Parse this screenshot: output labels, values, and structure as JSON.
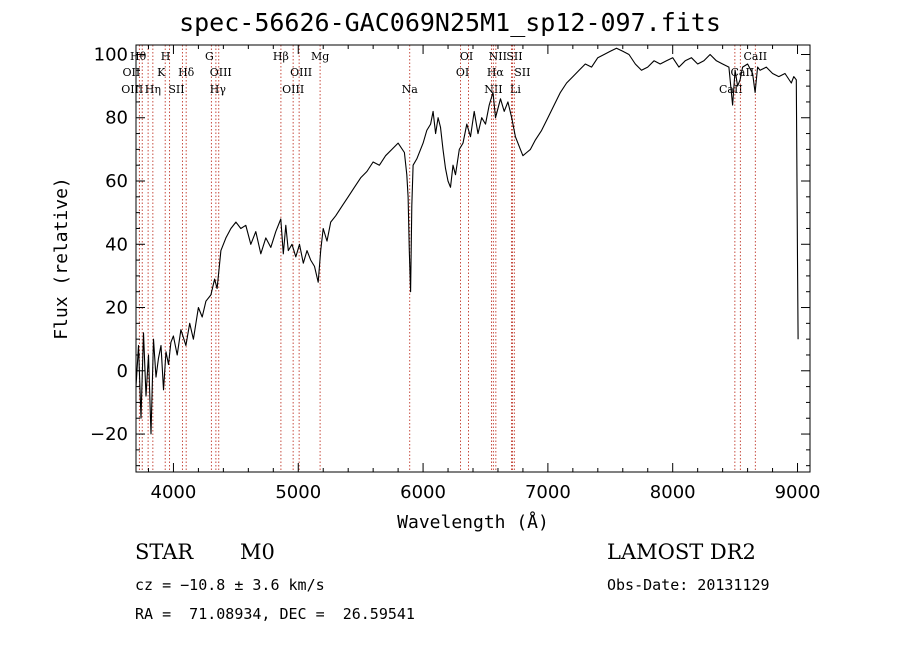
{
  "title": "spec-56626-GAC069N25M1_sp12-097.fits",
  "info": {
    "class": "STAR",
    "subclass": "M0",
    "survey": "LAMOST DR2",
    "cz": "cz = −10.8 ± 3.6 km/s",
    "obs_date": "Obs-Date: 20131129",
    "radec": "RA =  71.08934, DEC =  26.59541"
  },
  "chart_data": {
    "type": "line",
    "xlabel": "Wavelength (Å)",
    "ylabel": "Flux (relative)",
    "xlim": [
      3700,
      9100
    ],
    "ylim": [
      -32,
      103
    ],
    "xticks": [
      4000,
      5000,
      6000,
      7000,
      8000,
      9000
    ],
    "yticks": [
      -20,
      0,
      20,
      40,
      60,
      80,
      100
    ],
    "ytick_labels": [
      "−20",
      "0",
      "20",
      "40",
      "60",
      "80",
      "100"
    ],
    "grid": false,
    "series": [
      {
        "x": [
          3700,
          3720,
          3740,
          3760,
          3780,
          3800,
          3820,
          3840,
          3860,
          3880,
          3900,
          3920,
          3940,
          3960,
          3980,
          4000,
          4030,
          4060,
          4100,
          4130,
          4160,
          4200,
          4230,
          4260,
          4300,
          4330,
          4350,
          4380,
          4420,
          4460,
          4500,
          4540,
          4580,
          4620,
          4660,
          4700,
          4740,
          4780,
          4820,
          4860,
          4880,
          4900,
          4920,
          4950,
          4980,
          5010,
          5040,
          5070,
          5100,
          5130,
          5160,
          5180,
          5200,
          5230,
          5260,
          5300,
          5350,
          5400,
          5450,
          5500,
          5550,
          5600,
          5650,
          5700,
          5750,
          5800,
          5850,
          5870,
          5880,
          5890,
          5900,
          5910,
          5920,
          5950,
          6000,
          6030,
          6060,
          6080,
          6100,
          6120,
          6140,
          6160,
          6180,
          6200,
          6220,
          6240,
          6260,
          6290,
          6320,
          6350,
          6380,
          6410,
          6440,
          6470,
          6500,
          6530,
          6560,
          6580,
          6600,
          6620,
          6650,
          6680,
          6710,
          6740,
          6760,
          6780,
          6800,
          6830,
          6860,
          6900,
          6950,
          7000,
          7050,
          7100,
          7150,
          7200,
          7250,
          7300,
          7350,
          7400,
          7450,
          7500,
          7550,
          7600,
          7650,
          7700,
          7750,
          7800,
          7850,
          7900,
          7950,
          8000,
          8050,
          8100,
          8150,
          8200,
          8250,
          8300,
          8350,
          8400,
          8450,
          8480,
          8500,
          8520,
          8540,
          8560,
          8600,
          8640,
          8660,
          8680,
          8700,
          8750,
          8800,
          8850,
          8900,
          8950,
          8970,
          8990,
          9000,
          9005
        ],
        "y": [
          -5,
          8,
          -15,
          12,
          -8,
          5,
          -20,
          10,
          -2,
          4,
          8,
          -6,
          6,
          2,
          9,
          11,
          5,
          13,
          8,
          15,
          10,
          20,
          17,
          22,
          24,
          29,
          26,
          38,
          42,
          45,
          47,
          45,
          46,
          40,
          44,
          37,
          42,
          39,
          44,
          48,
          37,
          46,
          38,
          40,
          36,
          40,
          34,
          38,
          35,
          33,
          28,
          38,
          45,
          41,
          47,
          49,
          52,
          55,
          58,
          61,
          63,
          66,
          65,
          68,
          70,
          72,
          69,
          62,
          55,
          38,
          25,
          52,
          65,
          67,
          72,
          76,
          78,
          82,
          75,
          80,
          77,
          70,
          64,
          60,
          58,
          65,
          62,
          70,
          72,
          78,
          74,
          82,
          75,
          80,
          78,
          84,
          88,
          80,
          83,
          86,
          82,
          85,
          80,
          74,
          72,
          70,
          68,
          69,
          70,
          73,
          76,
          80,
          84,
          88,
          91,
          93,
          95,
          97,
          96,
          99,
          100,
          101,
          102,
          101,
          100,
          97,
          95,
          96,
          98,
          97,
          98,
          99,
          96,
          98,
          99,
          97,
          98,
          100,
          98,
          97,
          96,
          84,
          95,
          90,
          92,
          96,
          97,
          94,
          88,
          96,
          95,
          96,
          94,
          93,
          94,
          91,
          93,
          92,
          35,
          10
        ]
      }
    ],
    "lines": [
      {
        "wl": 3727,
        "label": "OII",
        "row": 1,
        "dx": -8
      },
      {
        "wl": 3750,
        "label": "OIII",
        "row": 2,
        "dx": -10
      },
      {
        "wl": 3797,
        "label": "Hθ",
        "row": 0,
        "dx": -10
      },
      {
        "wl": 3835,
        "label": "Hη",
        "row": 2,
        "dx": 0
      },
      {
        "wl": 3934,
        "label": "K",
        "row": 1,
        "dx": -4
      },
      {
        "wl": 3969,
        "label": "H",
        "row": 0,
        "dx": -4
      },
      {
        "wl": 4072,
        "label": "SII",
        "row": 2,
        "dx": -6
      },
      {
        "wl": 4102,
        "label": "Hδ",
        "row": 1,
        "dx": 0
      },
      {
        "wl": 4304,
        "label": "G",
        "row": 0,
        "dx": -2
      },
      {
        "wl": 4340,
        "label": "Hγ",
        "row": 2,
        "dx": 2
      },
      {
        "wl": 4363,
        "label": "OIII",
        "row": 1,
        "dx": 2
      },
      {
        "wl": 4861,
        "label": "Hβ",
        "row": 0,
        "dx": 0
      },
      {
        "wl": 4959,
        "label": "OIII",
        "row": 2,
        "dx": 0
      },
      {
        "wl": 5007,
        "label": "OIII",
        "row": 1,
        "dx": 2
      },
      {
        "wl": 5175,
        "label": "Mg",
        "row": 0,
        "dx": 0
      },
      {
        "wl": 5893,
        "label": "Na",
        "row": 2,
        "dx": 0
      },
      {
        "wl": 6300,
        "label": "OI",
        "row": 1,
        "dx": 2
      },
      {
        "wl": 6364,
        "label": "OI",
        "row": 0,
        "dx": -2
      },
      {
        "wl": 6548,
        "label": "NII",
        "row": 2,
        "dx": 2
      },
      {
        "wl": 6563,
        "label": "Hα",
        "row": 1,
        "dx": 2
      },
      {
        "wl": 6583,
        "label": "NII",
        "row": 0,
        "dx": 2
      },
      {
        "wl": 6708,
        "label": "Li",
        "row": 2,
        "dx": 4
      },
      {
        "wl": 6716,
        "label": "SII",
        "row": 0,
        "dx": 2
      },
      {
        "wl": 6731,
        "label": "SII",
        "row": 1,
        "dx": 8
      },
      {
        "wl": 8498,
        "label": "CaII",
        "row": 2,
        "dx": -4
      },
      {
        "wl": 8542,
        "label": "CaII",
        "row": 1,
        "dx": 2
      },
      {
        "wl": 8662,
        "label": "CaII",
        "row": 0,
        "dx": 0
      }
    ]
  }
}
